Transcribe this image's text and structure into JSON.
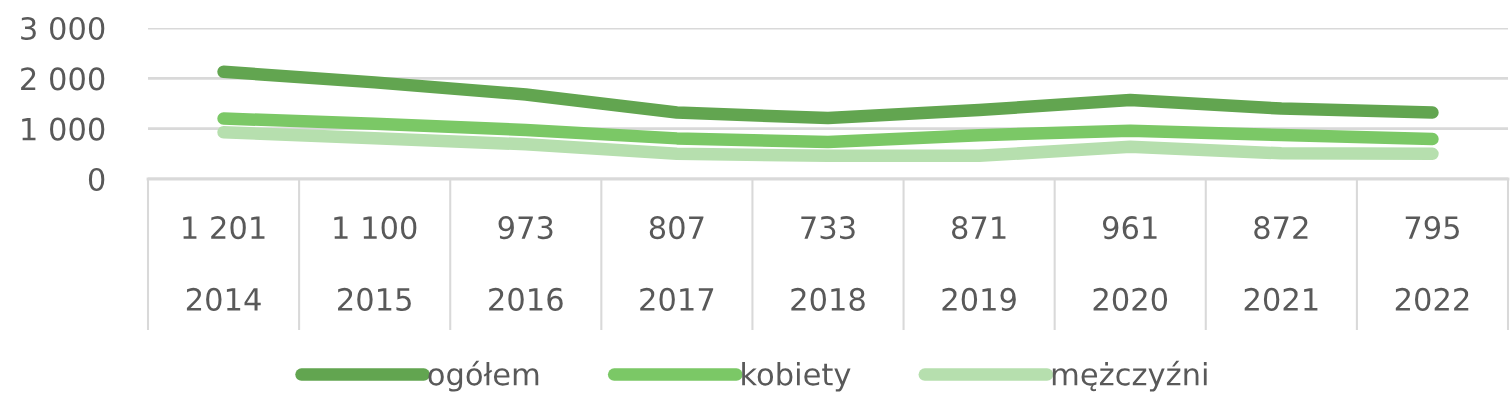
{
  "chart_data": {
    "type": "line",
    "categories": [
      "2014",
      "2015",
      "2016",
      "2017",
      "2018",
      "2019",
      "2020",
      "2021",
      "2022"
    ],
    "series": [
      {
        "name": "ogółem",
        "color": "#62a550",
        "values": [
          2130,
          1920,
          1680,
          1320,
          1210,
          1370,
          1570,
          1400,
          1320
        ]
      },
      {
        "name": "kobiety",
        "color": "#7bc866",
        "values": [
          1201,
          1100,
          973,
          807,
          733,
          871,
          961,
          872,
          795
        ],
        "value_labels": [
          "1 201",
          "1 100",
          "973",
          "807",
          "733",
          "871",
          "961",
          "872",
          "795"
        ]
      },
      {
        "name": "mężczyźni",
        "color": "#b6dfae",
        "values": [
          930,
          810,
          690,
          500,
          460,
          460,
          640,
          510,
          500
        ]
      }
    ],
    "ylim": [
      0,
      3000
    ],
    "yticks": [
      0,
      {
        "value": 1000,
        "label": "1 000"
      },
      {
        "value": 2000,
        "label": "2 000"
      },
      {
        "value": 3000,
        "label": "3 000"
      }
    ],
    "grid": "y",
    "legend": "bottom",
    "line_style": "solid"
  }
}
